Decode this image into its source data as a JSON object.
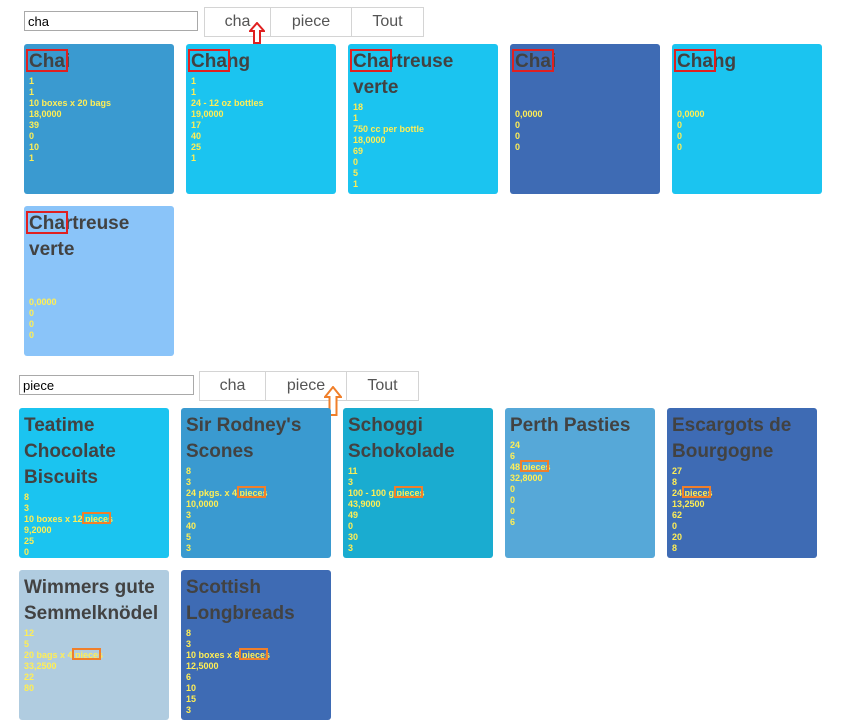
{
  "top": {
    "search_value": "cha",
    "tabs": [
      {
        "label": "cha"
      },
      {
        "label": "piece"
      },
      {
        "label": "Tout"
      }
    ],
    "cards": [
      {
        "title": "Chai",
        "color": "#3a9ad0",
        "values": [
          "1",
          "1",
          "10 boxes x 20 bags",
          "18,0000",
          "39",
          "0",
          "10",
          "1"
        ]
      },
      {
        "title": "Chang",
        "color": "#1bc4f0",
        "values": [
          "1",
          "1",
          "24 - 12 oz bottles",
          "19,0000",
          "17",
          "40",
          "25",
          "1"
        ]
      },
      {
        "title": "Chartreuse verte",
        "color": "#1bc4f0",
        "values": [
          "18",
          "1",
          "750 cc per bottle",
          "18,0000",
          "69",
          "0",
          "5",
          "1"
        ]
      },
      {
        "title": "Chai",
        "color": "#3e6bb4",
        "values": [
          "",
          "",
          "",
          "0,0000",
          "0",
          "0",
          "0"
        ]
      },
      {
        "title": "Chang",
        "color": "#1bc4f0",
        "values": [
          "",
          "",
          "",
          "0,0000",
          "0",
          "0",
          "0"
        ]
      },
      {
        "title": "Chartreuse verte",
        "color": "#8ac4f9",
        "values": [
          "",
          "",
          "",
          "0,0000",
          "0",
          "0",
          "0"
        ]
      }
    ]
  },
  "bottom": {
    "search_value": "piece",
    "tabs": [
      {
        "label": "cha"
      },
      {
        "label": "piece"
      },
      {
        "label": "Tout"
      }
    ],
    "cards": [
      {
        "title": "Teatime Chocolate Biscuits",
        "color": "#1bc4f0",
        "values": [
          "8",
          "3",
          "10 boxes x 12 pieces",
          "9,2000",
          "25",
          "0"
        ]
      },
      {
        "title": "Sir Rodney's Scones",
        "color": "#3a9ad0",
        "values": [
          "8",
          "3",
          "24 pkgs. x 4 pieces",
          "10,0000",
          "3",
          "40",
          "5",
          "3"
        ]
      },
      {
        "title": "Schoggi Schokolade",
        "color": "#1aacd0",
        "values": [
          "11",
          "3",
          "100 - 100 g pieces",
          "43,9000",
          "49",
          "0",
          "30",
          "3"
        ]
      },
      {
        "title": "Perth Pasties",
        "color": "#56a8d8",
        "values": [
          "24",
          "6",
          "48 pieces",
          "32,8000",
          "0",
          "0",
          "0",
          "6"
        ]
      },
      {
        "title": "Escargots de Bourgogne",
        "color": "#3e6bb4",
        "values": [
          "27",
          "8",
          "24 pieces",
          "13,2500",
          "62",
          "0",
          "20",
          "8"
        ]
      },
      {
        "title": "Wimmers gute Semmelknödel",
        "color": "#b0cce0",
        "values": [
          "12",
          "5",
          "20 bags x 4 pieces",
          "33,2500",
          "22",
          "80"
        ]
      },
      {
        "title": "Scottish Longbreads",
        "color": "#3e6bb4",
        "values": [
          "8",
          "3",
          "10 boxes x 8 pieces",
          "12,5000",
          "6",
          "10",
          "15",
          "3"
        ]
      }
    ]
  }
}
